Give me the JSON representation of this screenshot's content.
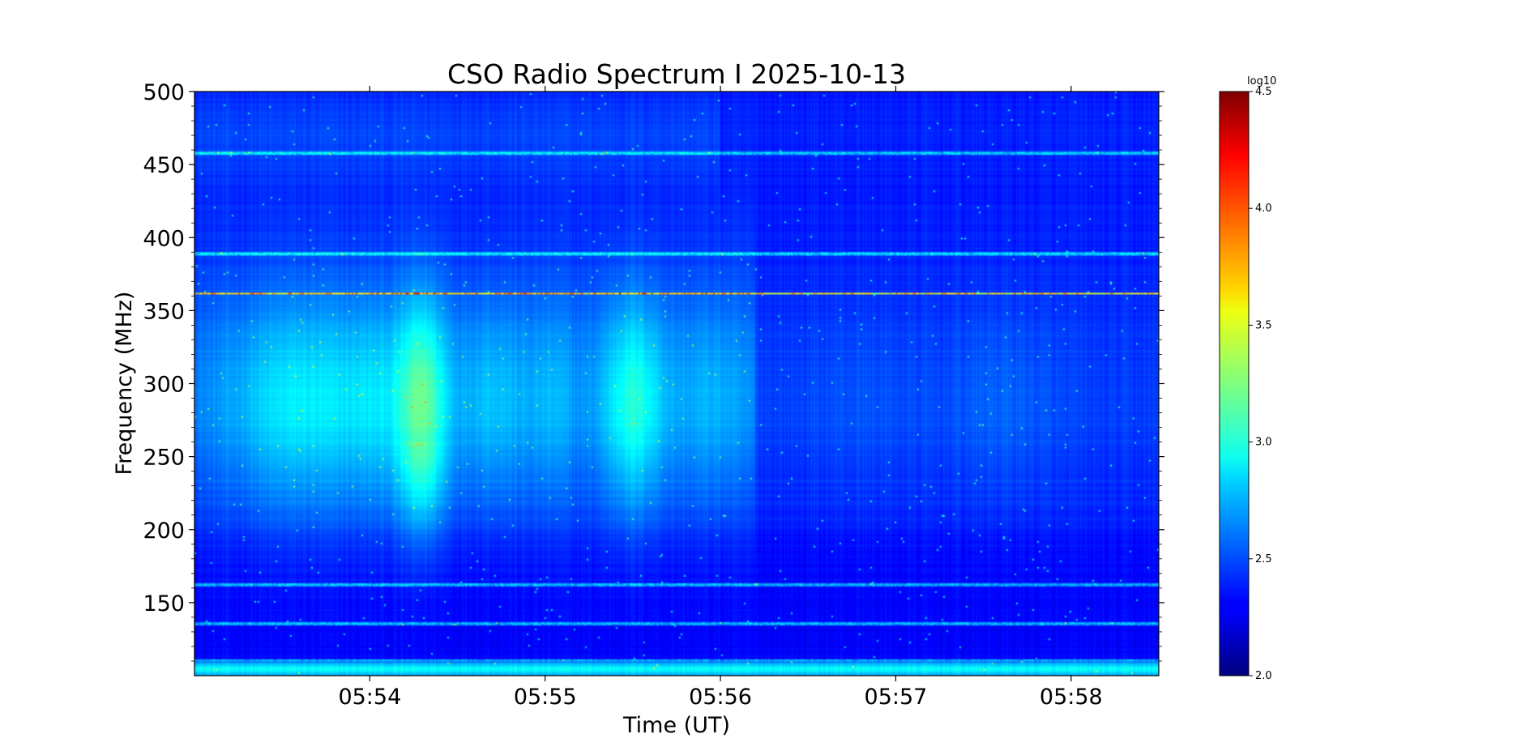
{
  "chart_data": {
    "type": "heatmap",
    "title": "CSO Radio Spectrum I 2025-10-13",
    "xlabel": "Time (UT)",
    "ylabel": "Frequency (MHz)",
    "x_ticks": [
      "05:54",
      "05:55",
      "05:56",
      "05:57",
      "05:58"
    ],
    "x_tick_minutes": [
      54,
      55,
      56,
      57,
      58
    ],
    "xlim_minutes": [
      53.0,
      58.5
    ],
    "y_ticks": [
      150,
      200,
      250,
      300,
      350,
      400,
      450,
      500
    ],
    "ylim": [
      100,
      500
    ],
    "colorbar": {
      "label": "log10",
      "ticks": [
        "2.0",
        "2.5",
        "3.0",
        "3.5",
        "4.0",
        "4.5"
      ],
      "range": [
        2.0,
        4.5
      ],
      "colormap": "jet"
    },
    "grid": false,
    "features": {
      "background_level": 2.35,
      "burst_band_mhz": [
        200,
        400
      ],
      "peak_burst_minute": 54.3,
      "peak_burst_level": 3.2,
      "narrowband_rfi_mhz": [
        110,
        135,
        162,
        362,
        389,
        458
      ],
      "strong_rfi_mhz": 362,
      "strong_rfi_level": 3.9
    }
  },
  "colors": {
    "jet_low": "#00007f",
    "jet_mid": "#7fff7f",
    "jet_high": "#7f0000"
  }
}
